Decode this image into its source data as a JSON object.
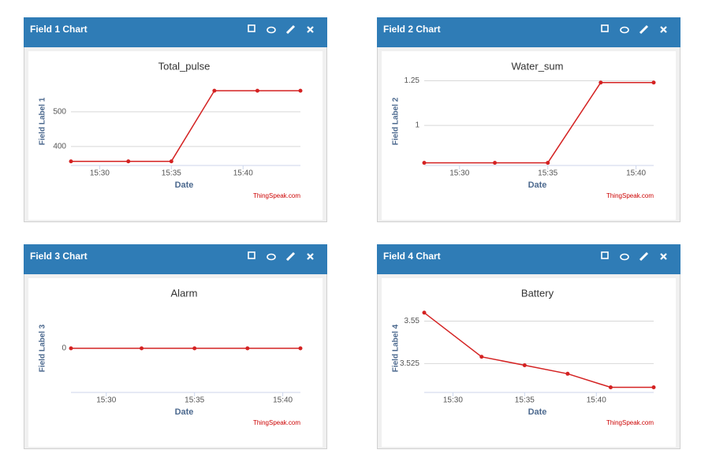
{
  "chart_data": [
    {
      "type": "line",
      "panel_title": "Field 1 Chart",
      "title": "Total_pulse",
      "xlabel": "Date",
      "ylabel": "Field Label 1",
      "credit": "ThingSpeak.com",
      "color": "#d42222",
      "x": [
        "15:28",
        "15:32",
        "15:35",
        "15:38",
        "15:41",
        "15:44"
      ],
      "values": [
        357,
        357,
        357,
        561,
        561,
        561
      ],
      "xlim": [
        "15:28",
        "15:44"
      ],
      "xticks": [
        "15:30",
        "15:35",
        "15:40"
      ],
      "ylim": [
        345,
        600
      ],
      "yticks": [
        400,
        500
      ],
      "grid": true
    },
    {
      "type": "line",
      "panel_title": "Field 2 Chart",
      "title": "Water_sum",
      "xlabel": "Date",
      "ylabel": "Field Label 2",
      "credit": "ThingSpeak.com",
      "color": "#d42222",
      "x": [
        "15:28",
        "15:32",
        "15:35",
        "15:38",
        "15:41"
      ],
      "values": [
        0.79,
        0.79,
        0.79,
        1.24,
        1.24
      ],
      "xlim": [
        "15:28",
        "15:41"
      ],
      "xticks": [
        "15:30",
        "15:35",
        "15:40"
      ],
      "ylim": [
        0.775,
        1.27
      ],
      "yticks": [
        1,
        1.25
      ],
      "grid": true
    },
    {
      "type": "line",
      "panel_title": "Field 3 Chart",
      "title": "Alarm",
      "xlabel": "Date",
      "ylabel": "Field Label 3",
      "credit": "ThingSpeak.com",
      "color": "#d42222",
      "x": [
        "15:28",
        "15:32",
        "15:35",
        "15:38",
        "15:41"
      ],
      "values": [
        0,
        0,
        0,
        0,
        0
      ],
      "xlim": [
        "15:28",
        "15:41"
      ],
      "xticks": [
        "15:30",
        "15:35",
        "15:40"
      ],
      "ylim": [
        -1,
        1
      ],
      "yticks": [
        0
      ],
      "grid": true
    },
    {
      "type": "line",
      "panel_title": "Field 4 Chart",
      "title": "Battery",
      "xlabel": "Date",
      "ylabel": "Field Label 4",
      "credit": "ThingSpeak.com",
      "color": "#d42222",
      "x": [
        "15:28",
        "15:32",
        "15:35",
        "15:38",
        "15:41",
        "15:44"
      ],
      "values": [
        3.555,
        3.529,
        3.524,
        3.519,
        3.511,
        3.511
      ],
      "xlim": [
        "15:28",
        "15:44"
      ],
      "xticks": [
        "15:30",
        "15:35",
        "15:40"
      ],
      "ylim": [
        3.508,
        3.56
      ],
      "yticks": [
        3.525,
        3.55
      ],
      "grid": true
    }
  ]
}
